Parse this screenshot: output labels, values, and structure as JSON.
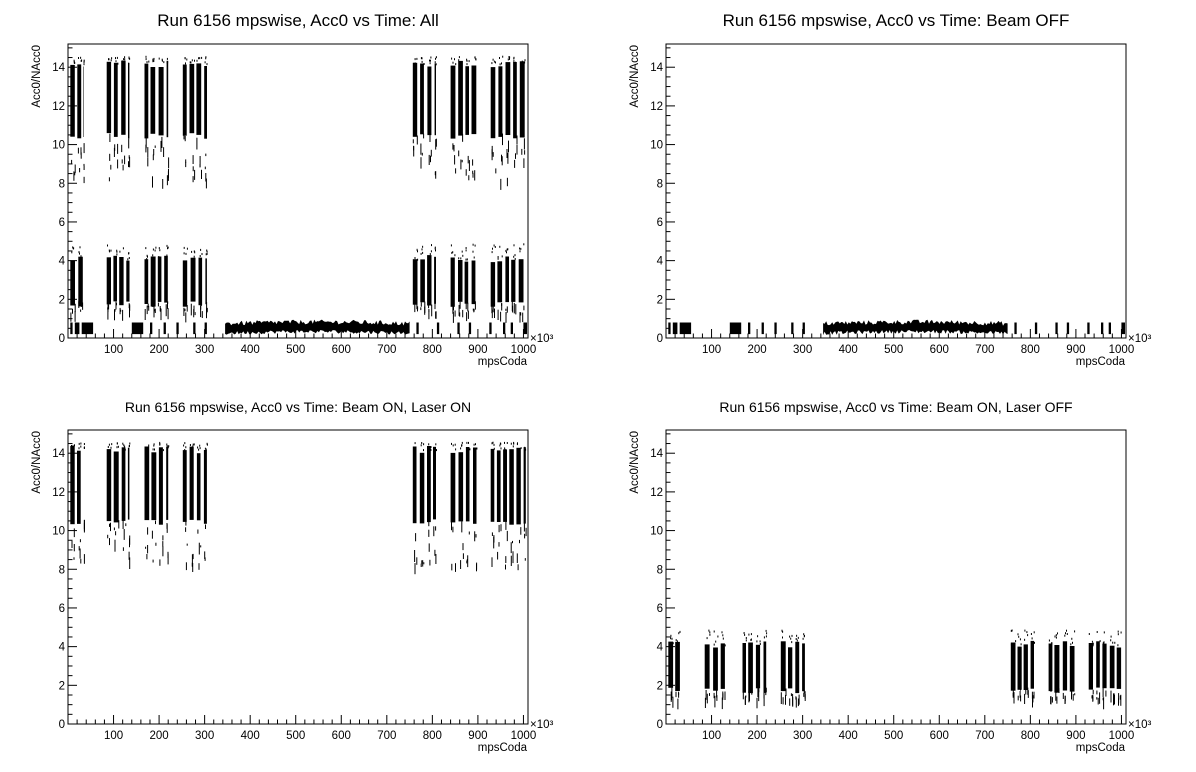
{
  "chart_data": [
    {
      "type": "scatter",
      "title": "Run 6156 mpswise, Acc0 vs Time: All",
      "xlabel": "mpsCoda",
      "ylabel": "Acc0/NAcc0",
      "x_multiplier": "×10³",
      "xlim": [
        0,
        1010
      ],
      "ylim": [
        0,
        15.2
      ],
      "x_ticks": [
        100,
        200,
        300,
        400,
        500,
        600,
        700,
        800,
        900,
        1000
      ],
      "y_ticks": [
        0,
        2,
        4,
        6,
        8,
        10,
        12,
        14
      ],
      "series": [
        {
          "values_desc": "high",
          "bursts": [
            [
              5,
              35
            ],
            [
              85,
              135
            ],
            [
              168,
              220
            ],
            [
              252,
              305
            ],
            [
              757,
              808
            ],
            [
              840,
              900
            ],
            [
              928,
              1005
            ]
          ],
          "core": [
            10.6,
            14.2
          ],
          "tail": [
            8.2,
            14.6
          ]
        },
        {
          "values_desc": "mid",
          "bursts": [
            [
              5,
              35
            ],
            [
              85,
              135
            ],
            [
              168,
              220
            ],
            [
              252,
              305
            ],
            [
              757,
              808
            ],
            [
              840,
              900
            ],
            [
              928,
              1005
            ]
          ],
          "core": [
            1.9,
            4.1
          ],
          "tail": [
            1.3,
            4.9
          ]
        },
        {
          "values_desc": "low",
          "segments": [
            [
              5,
              10
            ],
            [
              15,
              25
            ],
            [
              30,
              55
            ],
            [
              140,
              165
            ],
            [
              180,
              185
            ],
            [
              210,
              215
            ],
            [
              238,
              243
            ],
            [
              275,
              280
            ],
            [
              300,
              305
            ],
            [
              345,
              750
            ],
            [
              765,
              770
            ],
            [
              810,
              815
            ],
            [
              855,
              860
            ],
            [
              880,
              885
            ],
            [
              925,
              930
            ],
            [
              955,
              960
            ],
            [
              972,
              977
            ],
            [
              1000,
              1008
            ]
          ],
          "core": [
            0.2,
            0.8
          ],
          "tail": [
            0.0,
            1.0
          ]
        }
      ]
    },
    {
      "type": "scatter",
      "title": "Run 6156 mpswise, Acc0 vs Time: Beam OFF",
      "xlabel": "mpsCoda",
      "ylabel": "Acc0/NAcc0",
      "x_multiplier": "×10³",
      "xlim": [
        0,
        1010
      ],
      "ylim": [
        0,
        15.2
      ],
      "x_ticks": [
        100,
        200,
        300,
        400,
        500,
        600,
        700,
        800,
        900,
        1000
      ],
      "y_ticks": [
        0,
        2,
        4,
        6,
        8,
        10,
        12,
        14
      ],
      "series": [
        {
          "values_desc": "low",
          "segments": [
            [
              5,
              10
            ],
            [
              15,
              25
            ],
            [
              30,
              55
            ],
            [
              140,
              165
            ],
            [
              180,
              185
            ],
            [
              210,
              215
            ],
            [
              238,
              243
            ],
            [
              275,
              280
            ],
            [
              300,
              305
            ],
            [
              345,
              750
            ],
            [
              765,
              770
            ],
            [
              810,
              815
            ],
            [
              855,
              860
            ],
            [
              880,
              885
            ],
            [
              925,
              930
            ],
            [
              955,
              960
            ],
            [
              972,
              977
            ],
            [
              1000,
              1008
            ]
          ],
          "core": [
            0.2,
            0.8
          ],
          "tail": [
            0.0,
            1.0
          ]
        }
      ]
    },
    {
      "type": "scatter",
      "title": "Run 6156 mpswise, Acc0 vs Time: Beam ON, Laser ON",
      "xlabel": "mpsCoda",
      "ylabel": "Acc0/NAcc0",
      "x_multiplier": "×10³",
      "xlim": [
        0,
        1010
      ],
      "ylim": [
        0,
        15.2
      ],
      "x_ticks": [
        100,
        200,
        300,
        400,
        500,
        600,
        700,
        800,
        900,
        1000
      ],
      "y_ticks": [
        0,
        2,
        4,
        6,
        8,
        10,
        12,
        14
      ],
      "series": [
        {
          "values_desc": "high",
          "bursts": [
            [
              5,
              35
            ],
            [
              85,
              135
            ],
            [
              168,
              220
            ],
            [
              252,
              305
            ],
            [
              757,
              808
            ],
            [
              840,
              900
            ],
            [
              928,
              1005
            ]
          ],
          "core": [
            10.6,
            14.2
          ],
          "tail": [
            8.2,
            14.6
          ]
        }
      ]
    },
    {
      "type": "scatter",
      "title": "Run 6156 mpswise, Acc0 vs Time: Beam ON, Laser OFF",
      "xlabel": "mpsCoda",
      "ylabel": "Acc0/NAcc0",
      "x_multiplier": "×10³",
      "xlim": [
        0,
        1010
      ],
      "ylim": [
        0,
        15.2
      ],
      "x_ticks": [
        100,
        200,
        300,
        400,
        500,
        600,
        700,
        800,
        900,
        1000
      ],
      "y_ticks": [
        0,
        2,
        4,
        6,
        8,
        10,
        12,
        14
      ],
      "series": [
        {
          "values_desc": "mid",
          "bursts": [
            [
              5,
              35
            ],
            [
              85,
              135
            ],
            [
              168,
              220
            ],
            [
              252,
              305
            ],
            [
              757,
              808
            ],
            [
              840,
              900
            ],
            [
              928,
              1005
            ]
          ],
          "core": [
            1.9,
            4.1
          ],
          "tail": [
            1.3,
            4.9
          ]
        }
      ]
    }
  ]
}
